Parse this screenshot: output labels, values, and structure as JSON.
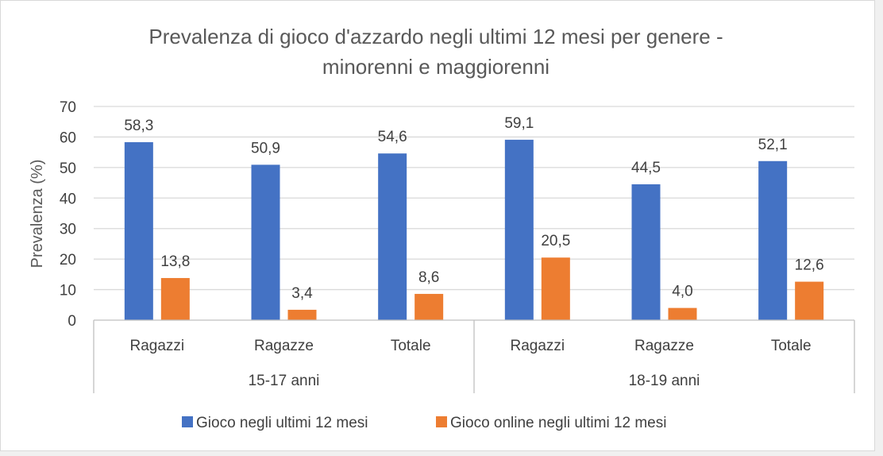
{
  "chart_data": {
    "type": "bar",
    "title_lines": [
      "Prevalenza di gioco d'azzardo negli ultimi 12 mesi per genere -",
      "minorenni e maggiorenni"
    ],
    "ylabel": "Prevalenza (%)",
    "xlabel": "",
    "ylim": [
      0,
      70
    ],
    "yticks": [
      0,
      10,
      20,
      30,
      40,
      50,
      60,
      70
    ],
    "grid": true,
    "legend_position": "bottom",
    "categories": [
      "Ragazzi",
      "Ragazze",
      "Totale",
      "Ragazzi",
      "Ragazze",
      "Totale"
    ],
    "groups": [
      {
        "label": "15-17 anni",
        "span": 3
      },
      {
        "label": "18-19 anni",
        "span": 3
      }
    ],
    "series": [
      {
        "name": "Gioco negli ultimi 12 mesi",
        "color": "#4472c4",
        "values": [
          58.3,
          50.9,
          54.6,
          59.1,
          44.5,
          52.1
        ],
        "labels": [
          "58,3",
          "50,9",
          "54,6",
          "59,1",
          "44,5",
          "52,1"
        ]
      },
      {
        "name": "Gioco online negli ultimi 12 mesi",
        "color": "#ed7d31",
        "values": [
          13.8,
          3.4,
          8.6,
          20.5,
          4.0,
          12.6
        ],
        "labels": [
          "13,8",
          "3,4",
          "8,6",
          "20,5",
          "4,0",
          "12,6"
        ]
      }
    ]
  },
  "colors": {
    "gridline": "#d9d9d9",
    "axis_line": "#bfbfbf",
    "text": "#404040",
    "title": "#595959"
  }
}
